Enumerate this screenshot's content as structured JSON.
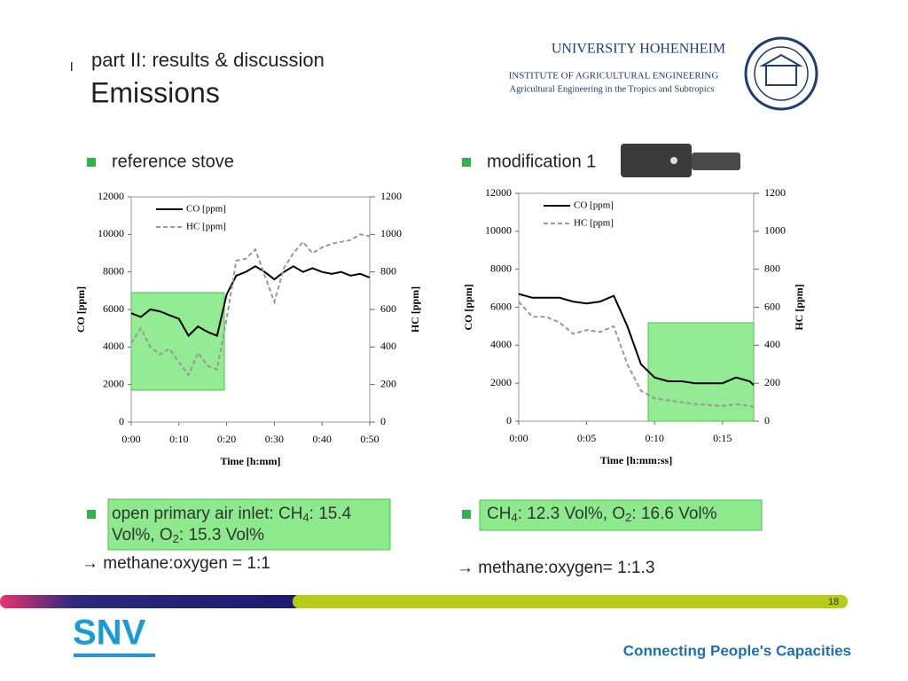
{
  "header": {
    "section": "part II: results & discussion",
    "title": "Emissions"
  },
  "institution": {
    "name": "UNIVERSITY HOHENHEIM",
    "institute": "INSTITUTE OF AGRICULTURAL ENGINEERING",
    "department": "Agricultural Engineering in the Tropics and Subtropics"
  },
  "chart_data": [
    {
      "type": "line",
      "title": "reference stove",
      "x_label": "Time [h:mm]",
      "y_label": "CO [ppm]",
      "y2_label": "HC [ppm]",
      "x": [
        0,
        2,
        4,
        6,
        8,
        10,
        12,
        14,
        16,
        18,
        20,
        22,
        24,
        26,
        28,
        30,
        32,
        34,
        36,
        38,
        40,
        42,
        44,
        46,
        48,
        50
      ],
      "xlim": [
        0,
        50
      ],
      "xticks": [
        {
          "value": 0,
          "label": "0:00"
        },
        {
          "value": 10,
          "label": "0:10"
        },
        {
          "value": 20,
          "label": "0:20"
        },
        {
          "value": 30,
          "label": "0:30"
        },
        {
          "value": 40,
          "label": "0:40"
        },
        {
          "value": 50,
          "label": "0:50"
        }
      ],
      "ylim": [
        0,
        12000
      ],
      "yticks": [
        0,
        2000,
        4000,
        6000,
        8000,
        10000,
        12000
      ],
      "y2lim": [
        0,
        1200
      ],
      "y2ticks": [
        0,
        200,
        400,
        600,
        800,
        1000,
        1200
      ],
      "series": [
        {
          "name": "CO [ppm]",
          "color": "#000000",
          "style": "solid",
          "values": [
            5800,
            5600,
            6000,
            5900,
            5700,
            5500,
            4600,
            5100,
            4800,
            4600,
            6800,
            7800,
            8000,
            8300,
            8000,
            7600,
            8000,
            8300,
            8000,
            8200,
            8000,
            7900,
            8000,
            7800,
            7900,
            7700
          ]
        },
        {
          "name": "HC [ppm]",
          "color": "#999999",
          "style": "dashed",
          "axis": "y2",
          "values": [
            420,
            500,
            400,
            360,
            390,
            320,
            250,
            370,
            300,
            280,
            550,
            860,
            870,
            920,
            780,
            640,
            820,
            900,
            960,
            900,
            930,
            950,
            960,
            970,
            1000,
            990
          ]
        }
      ]
    },
    {
      "type": "line",
      "title": "modification 1",
      "x_label": "Time [h:mm:ss]",
      "y_label": "CO [ppm]",
      "y2_label": "HC [ppm]",
      "x": [
        0,
        1,
        2,
        3,
        4,
        5,
        6,
        7,
        8,
        9,
        10,
        11,
        12,
        13,
        14,
        15,
        16,
        17,
        17.3
      ],
      "xlim": [
        0,
        17.3
      ],
      "xticks": [
        {
          "value": 0,
          "label": "0:00"
        },
        {
          "value": 5,
          "label": "0:05"
        },
        {
          "value": 10,
          "label": "0:10"
        },
        {
          "value": 15,
          "label": "0:15"
        }
      ],
      "ylim": [
        0,
        12000
      ],
      "yticks": [
        0,
        2000,
        4000,
        6000,
        8000,
        10000,
        12000
      ],
      "y2lim": [
        0,
        1200
      ],
      "y2ticks": [
        0,
        200,
        400,
        600,
        800,
        1000,
        1200
      ],
      "series": [
        {
          "name": "CO [ppm]",
          "color": "#000000",
          "style": "solid",
          "values": [
            6700,
            6500,
            6500,
            6500,
            6300,
            6200,
            6300,
            6600,
            5000,
            3000,
            2300,
            2100,
            2100,
            2000,
            2000,
            2000,
            2300,
            2100,
            1900
          ]
        },
        {
          "name": "HC [ppm]",
          "color": "#999999",
          "style": "dashed",
          "axis": "y2",
          "values": [
            630,
            550,
            550,
            520,
            460,
            480,
            470,
            500,
            300,
            160,
            120,
            110,
            100,
            90,
            85,
            80,
            90,
            80,
            75
          ]
        }
      ]
    }
  ],
  "notes": [
    {
      "lines": [
        [
          "open primary air inlet: CH",
          "4",
          ": 15.4"
        ],
        [
          "Vol%, O",
          "2",
          ": 15.3 Vol%"
        ]
      ],
      "conclusion": "→ methane:oxygen = 1:1"
    },
    {
      "lines": [
        [
          "CH",
          "4",
          ": 12.3 Vol%, O",
          "2",
          ": 16.6 Vol%"
        ]
      ],
      "conclusion": "→ methane:oxygen= 1:1.3"
    }
  ],
  "footer": {
    "page": "18",
    "logo": "SNV",
    "tagline": "Connecting People's Capacities"
  }
}
